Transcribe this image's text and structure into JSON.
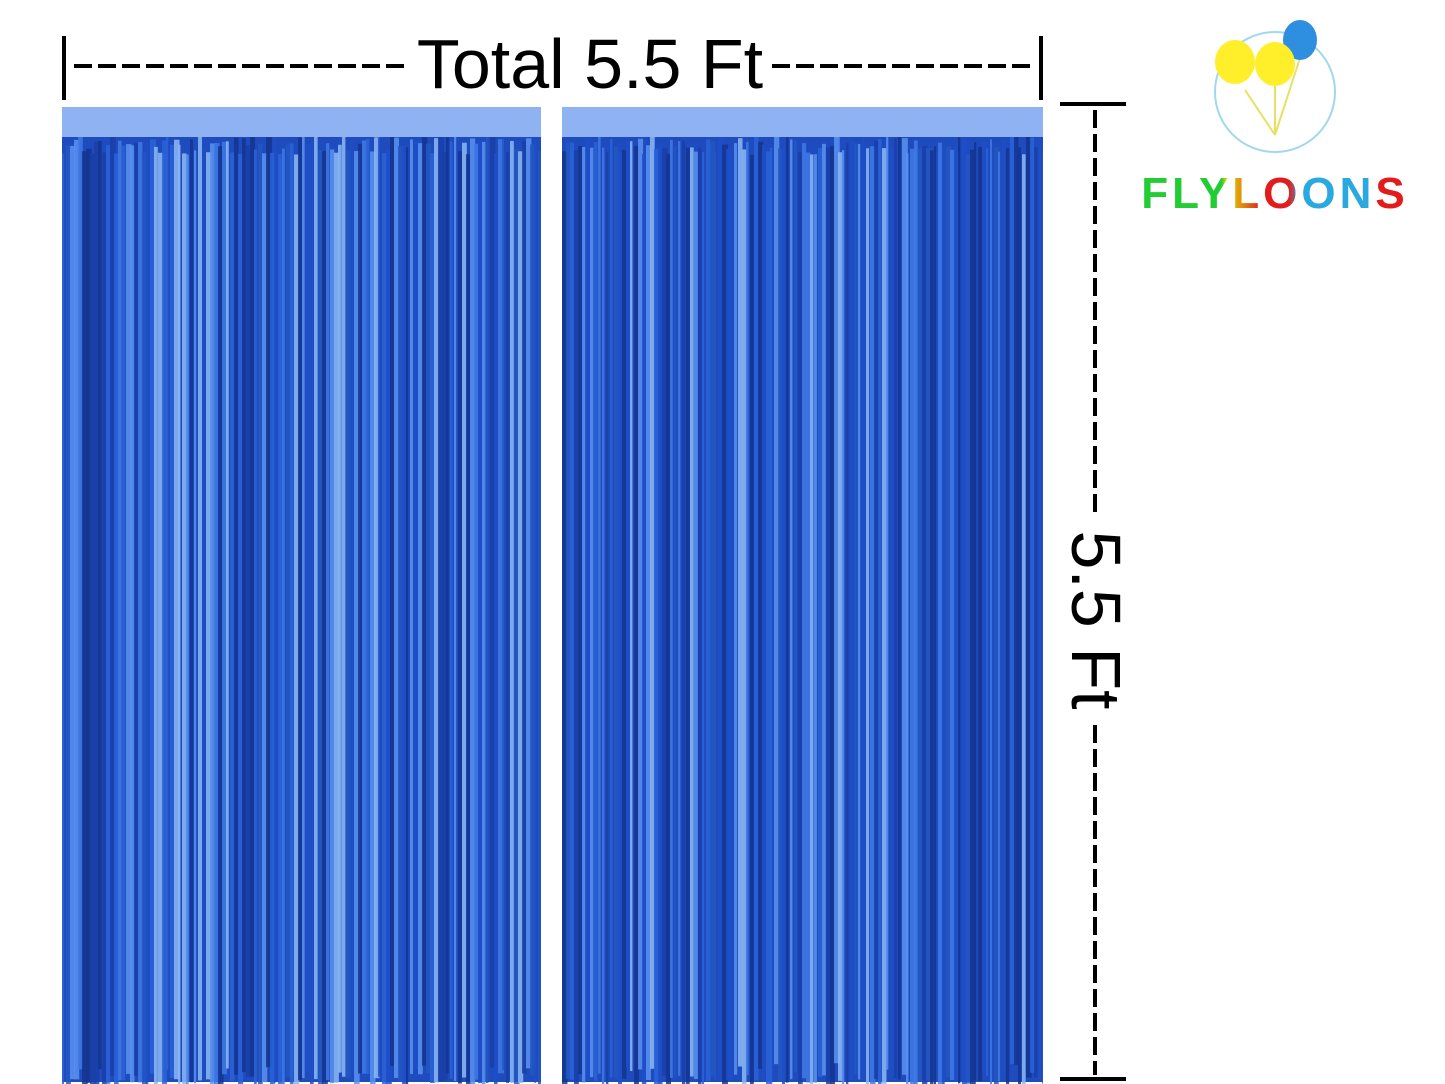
{
  "width_label": "Total 5.5 Ft",
  "height_label": "5.5 Ft",
  "brand": "FLYLOONS"
}
